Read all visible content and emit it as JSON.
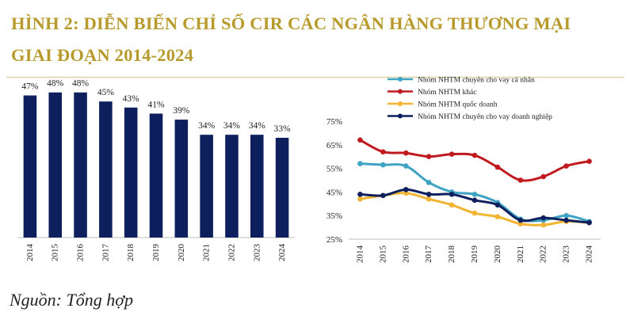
{
  "title_line1": "HÌNH 2: DIỄN BIẾN CHỈ SỐ CIR CÁC NGÂN HÀNG THƯƠNG MẠI",
  "title_line2": "GIAI ĐOẠN 2014-2024",
  "source": "Nguồn: Tổng hợp",
  "colors": {
    "title": "#b89a2c",
    "bar": "#0d1f5c",
    "retail": "#3fa4c4",
    "other": "#c0191f",
    "state": "#f3b531",
    "corporate": "#0d1f5c"
  },
  "chart_data": [
    {
      "type": "bar",
      "categories": [
        "2014",
        "2015",
        "2016",
        "2017",
        "2018",
        "2019",
        "2020",
        "2021",
        "2022",
        "2023",
        "2024"
      ],
      "values": [
        47,
        48,
        48,
        45,
        43,
        41,
        39,
        34,
        34,
        34,
        33
      ],
      "data_labels": [
        "47%",
        "48%",
        "48%",
        "45%",
        "43%",
        "41%",
        "39%",
        "34%",
        "34%",
        "34%",
        "33%"
      ],
      "ylim": [
        0,
        55
      ],
      "grid": false
    },
    {
      "type": "line",
      "x": [
        "2014",
        "2015",
        "2016",
        "2017",
        "2018",
        "2019",
        "2020",
        "2021",
        "2022",
        "2023",
        "2024"
      ],
      "y_ticks": [
        "75%",
        "65%",
        "55%",
        "45%",
        "35%",
        "25%"
      ],
      "ylim": [
        25,
        75
      ],
      "legend_position": "top",
      "series": [
        {
          "name": "Nhóm NHTM chuyên cho vay cá nhân",
          "color_key": "retail",
          "values": [
            57,
            56.5,
            56,
            49,
            45,
            44,
            40.5,
            33.5,
            33,
            35,
            32.5
          ]
        },
        {
          "name": "Nhóm NHTM khác",
          "color_key": "other",
          "values": [
            67,
            62,
            61.5,
            60,
            61,
            60.5,
            55.5,
            50,
            51.5,
            56,
            58
          ]
        },
        {
          "name": "Nhóm NHTM quốc doanh",
          "color_key": "state",
          "values": [
            42,
            43.5,
            44.5,
            42,
            39.5,
            36,
            34.5,
            31.5,
            31,
            32.5,
            32
          ]
        },
        {
          "name": "Nhóm NHTM chuyên cho vay doanh nghiệp",
          "color_key": "corporate",
          "values": [
            44,
            43.5,
            46,
            44,
            44,
            41.5,
            39.5,
            33,
            34,
            33,
            32
          ]
        }
      ]
    }
  ]
}
